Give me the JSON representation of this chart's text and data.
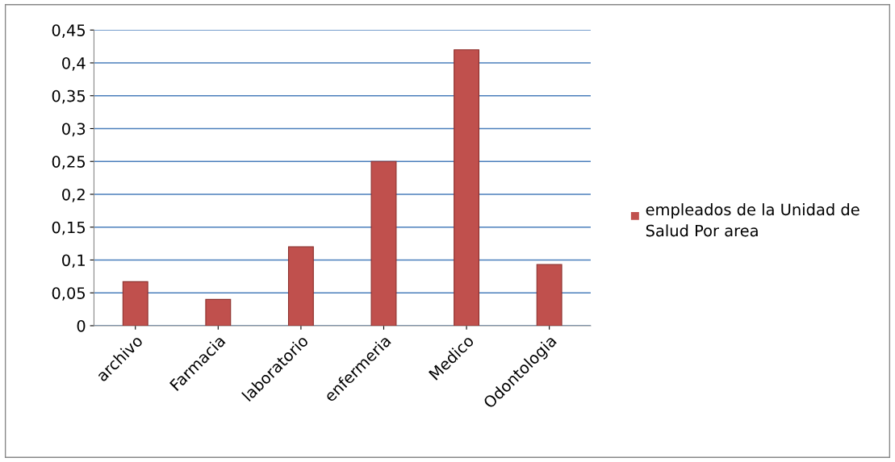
{
  "chart_data": {
    "type": "bar",
    "categories": [
      "archivo",
      "Farmacia",
      "laboratorio",
      "enfermeria",
      "Medico",
      "Odontologia"
    ],
    "series": [
      {
        "name": "empleados de la Unidad de Salud Por area",
        "color": "#c0504d",
        "values": [
          0.067,
          0.04,
          0.12,
          0.25,
          0.42,
          0.093
        ]
      }
    ],
    "ylim": [
      0,
      0.45
    ],
    "yticks": [
      {
        "value": 0,
        "label": "0"
      },
      {
        "value": 0.05,
        "label": "0,05"
      },
      {
        "value": 0.1,
        "label": "0,1"
      },
      {
        "value": 0.15,
        "label": "0,15"
      },
      {
        "value": 0.2,
        "label": "0,2"
      },
      {
        "value": 0.25,
        "label": "0,25"
      },
      {
        "value": 0.3,
        "label": "0,3"
      },
      {
        "value": 0.35,
        "label": "0,35"
      },
      {
        "value": 0.4,
        "label": "0,4"
      },
      {
        "value": 0.45,
        "label": "0,45"
      }
    ],
    "grid": "y",
    "legend": "right"
  }
}
